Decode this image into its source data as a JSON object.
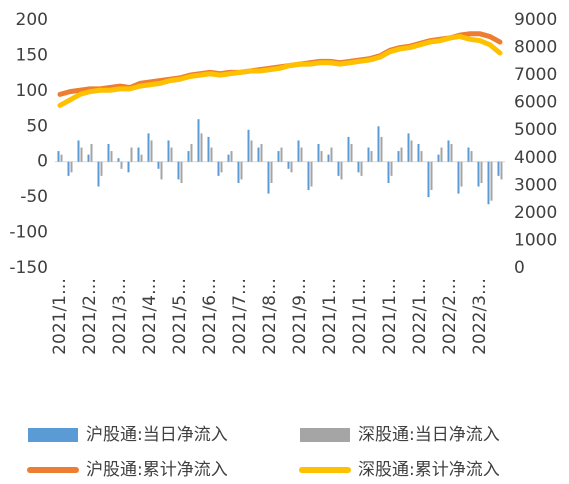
{
  "chart_data": {
    "type": "bar_line",
    "categories": [
      "2021/1…",
      null,
      null,
      "2021/2…",
      null,
      null,
      "2021/3…",
      null,
      null,
      "2021/4…",
      null,
      null,
      "2021/5…",
      null,
      null,
      "2021/6…",
      null,
      null,
      "2021/7…",
      null,
      null,
      "2021/8…",
      null,
      null,
      "2021/9…",
      null,
      null,
      "2021/1…",
      null,
      null,
      "2021/1…",
      null,
      null,
      "2021/1…",
      null,
      null,
      "2022/1…",
      null,
      null,
      "2022/2…",
      null,
      null,
      "2022/3…",
      null,
      null
    ],
    "series": [
      {
        "name": "沪股通:当日净流入",
        "type": "bar",
        "color": "#5b9bd5",
        "values": [
          15,
          -20,
          30,
          10,
          -35,
          25,
          5,
          -15,
          20,
          40,
          -10,
          30,
          -25,
          15,
          60,
          35,
          -20,
          10,
          -30,
          45,
          20,
          -45,
          15,
          -10,
          30,
          -40,
          25,
          10,
          -20,
          35,
          -15,
          20,
          50,
          -30,
          15,
          40,
          25,
          -50,
          10,
          30,
          -45,
          20,
          -35,
          -60,
          -20
        ]
      },
      {
        "name": "深股通:当日净流入",
        "type": "bar",
        "color": "#a5a5a5",
        "values": [
          10,
          -15,
          20,
          25,
          -20,
          15,
          -10,
          20,
          10,
          30,
          -25,
          20,
          -30,
          25,
          40,
          20,
          -15,
          15,
          -25,
          30,
          25,
          -30,
          20,
          -15,
          20,
          -35,
          15,
          20,
          -25,
          25,
          -20,
          15,
          35,
          -20,
          20,
          30,
          15,
          -40,
          20,
          25,
          -35,
          15,
          -30,
          -55,
          -25
        ]
      },
      {
        "name": "沪股通:累计净流入",
        "type": "line",
        "axis": "y2",
        "color": "#ed7d31",
        "values": [
          6300,
          6400,
          6450,
          6500,
          6500,
          6550,
          6600,
          6550,
          6700,
          6750,
          6800,
          6850,
          6900,
          7000,
          7050,
          7100,
          7050,
          7100,
          7100,
          7150,
          7200,
          7250,
          7300,
          7350,
          7400,
          7450,
          7500,
          7500,
          7450,
          7500,
          7550,
          7600,
          7700,
          7900,
          8000,
          8050,
          8150,
          8250,
          8300,
          8350,
          8450,
          8500,
          8500,
          8400,
          8200
        ]
      },
      {
        "name": "深股通:累计净流入",
        "type": "line",
        "axis": "y2",
        "color": "#ffc000",
        "values": [
          5900,
          6100,
          6300,
          6400,
          6450,
          6450,
          6500,
          6500,
          6600,
          6650,
          6700,
          6800,
          6850,
          6950,
          7000,
          7050,
          7000,
          7050,
          7100,
          7150,
          7150,
          7200,
          7250,
          7350,
          7400,
          7400,
          7450,
          7450,
          7400,
          7450,
          7500,
          7550,
          7650,
          7850,
          7950,
          8000,
          8100,
          8200,
          8250,
          8350,
          8400,
          8300,
          8250,
          8100,
          7800
        ]
      }
    ],
    "ylim": [
      -150,
      200
    ],
    "yticks": [
      -150,
      -100,
      -50,
      0,
      50,
      100,
      150,
      200
    ],
    "y2lim": [
      0,
      9000
    ],
    "y2ticks": [
      0,
      1000,
      2000,
      3000,
      4000,
      5000,
      6000,
      7000,
      8000,
      9000
    ],
    "grid": false,
    "legend": "bottom"
  }
}
